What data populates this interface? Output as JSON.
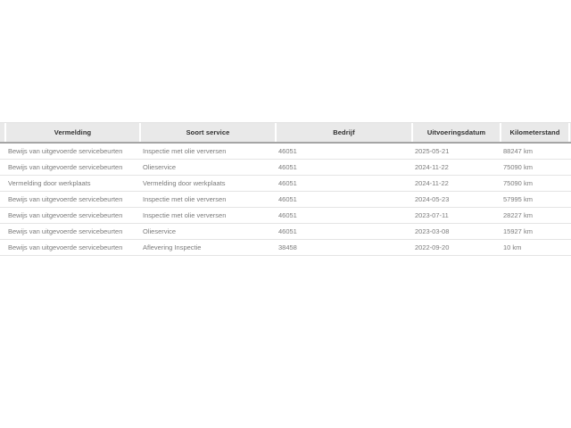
{
  "colors": {
    "page_background": "#ffffff",
    "header_background": "#e9e9e9",
    "header_text": "#2e2e2e",
    "header_bottom_border": "#a5a5a5",
    "row_separator": "#e4e4e4",
    "row_text": "#7b7b7b"
  },
  "table": {
    "columns": [
      {
        "label": "Vermelding"
      },
      {
        "label": "Soort service"
      },
      {
        "label": "Bedrijf"
      },
      {
        "label": "Uitvoeringsdatum"
      },
      {
        "label": "Kilometerstand"
      }
    ],
    "rows": [
      {
        "vermelding": "Bewijs van uitgevoerde servicebeurten",
        "soort_service": "Inspectie met olie verversen",
        "bedrijf": "46051",
        "uitvoeringsdatum": "2025-05-21",
        "kilometerstand": "88247 km"
      },
      {
        "vermelding": "Bewijs van uitgevoerde servicebeurten",
        "soort_service": "Olieservice",
        "bedrijf": "46051",
        "uitvoeringsdatum": "2024-11-22",
        "kilometerstand": "75090 km"
      },
      {
        "vermelding": "Vermelding door werkplaats",
        "soort_service": "Vermelding door werkplaats",
        "bedrijf": "46051",
        "uitvoeringsdatum": "2024-11-22",
        "kilometerstand": "75090 km"
      },
      {
        "vermelding": "Bewijs van uitgevoerde servicebeurten",
        "soort_service": "Inspectie met olie verversen",
        "bedrijf": "46051",
        "uitvoeringsdatum": "2024-05-23",
        "kilometerstand": "57995 km"
      },
      {
        "vermelding": "Bewijs van uitgevoerde servicebeurten",
        "soort_service": "Inspectie met olie verversen",
        "bedrijf": "46051",
        "uitvoeringsdatum": "2023-07-11",
        "kilometerstand": "28227 km"
      },
      {
        "vermelding": "Bewijs van uitgevoerde servicebeurten",
        "soort_service": "Olieservice",
        "bedrijf": "46051",
        "uitvoeringsdatum": "2023-03-08",
        "kilometerstand": "15927 km"
      },
      {
        "vermelding": "Bewijs van uitgevoerde servicebeurten",
        "soort_service": "Aflevering Inspectie",
        "bedrijf": "38458",
        "uitvoeringsdatum": "2022-09-20",
        "kilometerstand": "10 km"
      }
    ]
  }
}
